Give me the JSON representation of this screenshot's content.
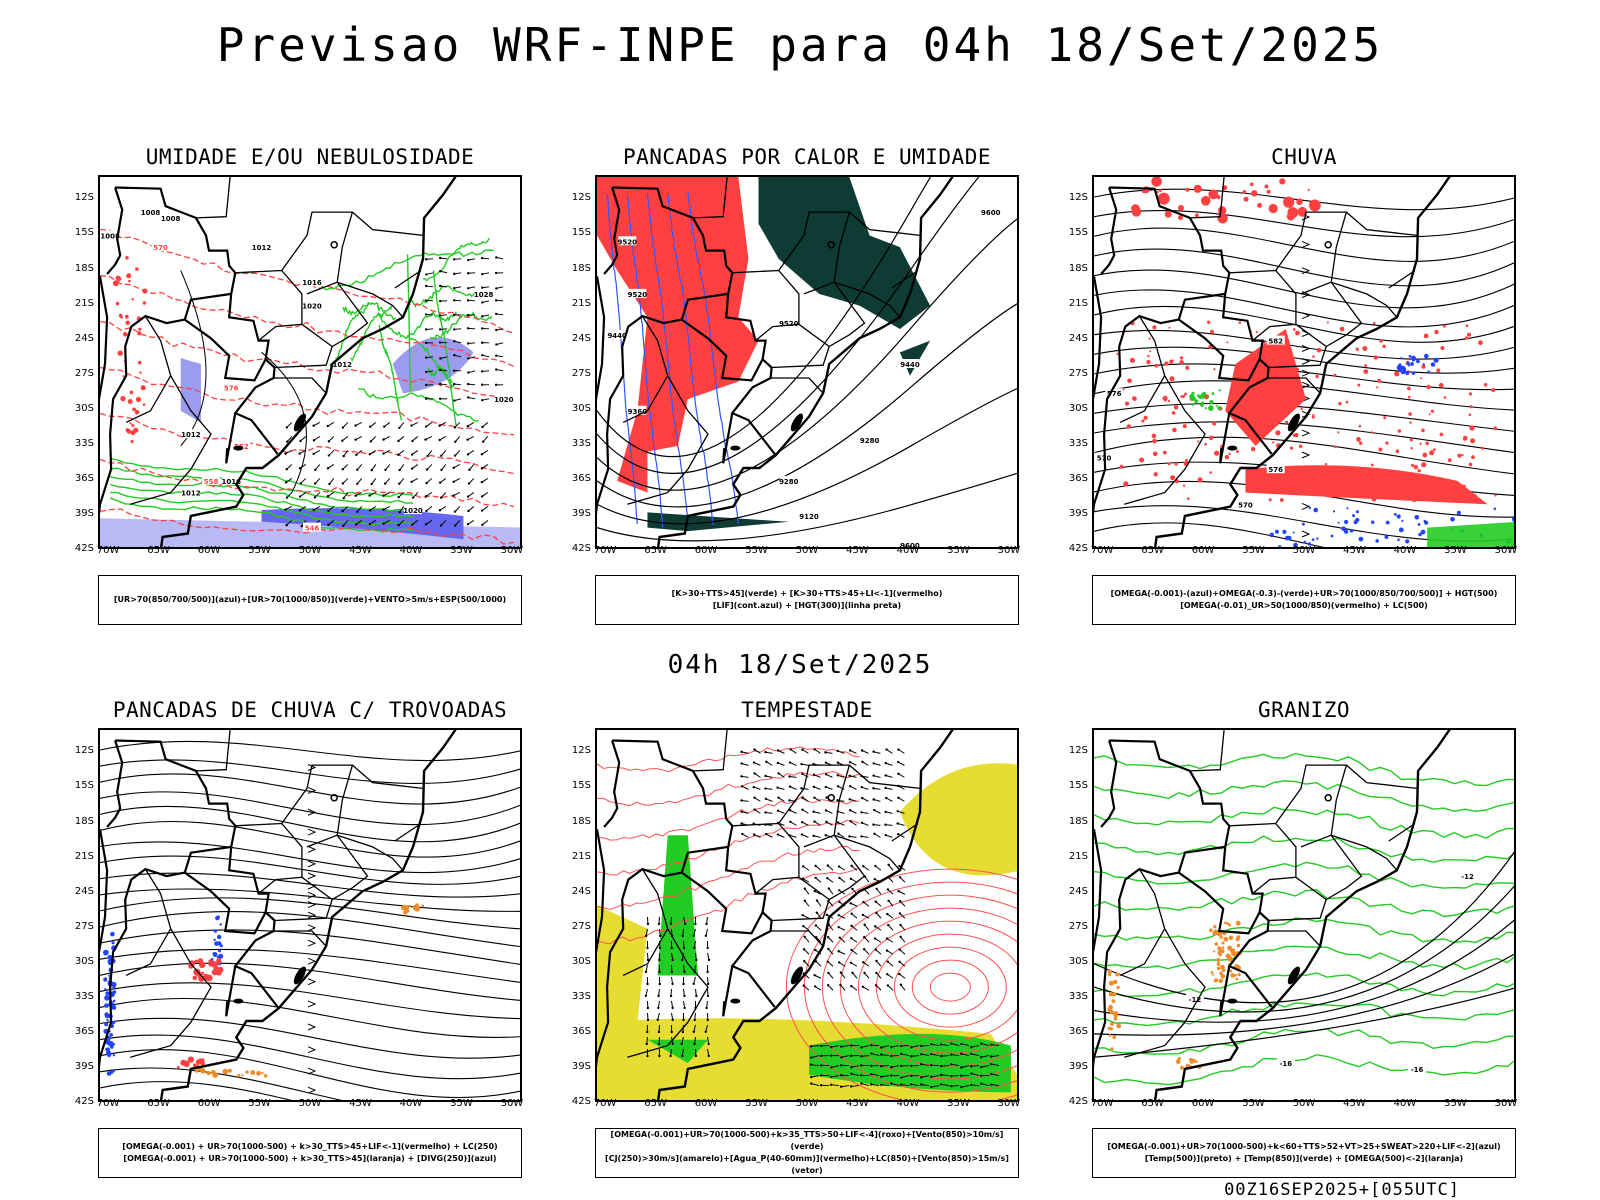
{
  "title": "Previsao WRF-INPE  para 04h 18/Set/2025",
  "subtitle_time": "04h 18/Set/2025",
  "footer": "00Z16SEP2025+[055UTC]",
  "lat_labels": [
    "12S",
    "15S",
    "18S",
    "21S",
    "24S",
    "27S",
    "30S",
    "33S",
    "36S",
    "39S",
    "42S"
  ],
  "lon_labels": [
    "70W",
    "65W",
    "60W",
    "55W",
    "50W",
    "45W",
    "40W",
    "35W",
    "30W"
  ],
  "colors": {
    "blue_shade": "#9b9bf0",
    "green": "#22cc22",
    "red": "#ff4040",
    "dark_teal": "#0f3b35",
    "yellow": "#e6dc32",
    "orange": "#f08c2a",
    "blue": "#2244ff"
  },
  "panels": [
    {
      "id": "umidade",
      "title": "UMIDADE E/OU NEBULOSIDADE",
      "legend": [
        "[UR>70(850/700/500)](azul)+[UR>70(1000/850)](verde)+VENTO>5m/s+ESP(500/1000)"
      ],
      "contour_labels": [
        "1008",
        "1008",
        "1008",
        "1012",
        "1016",
        "1020",
        "1028",
        "1012",
        "1012",
        "1016",
        "1012",
        "1020",
        "1020",
        "570",
        "576",
        "558",
        "552",
        "546"
      ]
    },
    {
      "id": "pancadas_calor",
      "title": "PANCADAS POR CALOR E UMIDADE",
      "legend": [
        "[K>30+TTS>45](verde) + [K>30+TTS>45+LI<-1](vermelho)",
        "[LIF](cont.azul) + [HGT(300)](linha preta)"
      ],
      "contour_labels": [
        "9600",
        "9520",
        "9520",
        "9520",
        "9440",
        "9440",
        "9360",
        "9280",
        "9280",
        "9120",
        "9600"
      ]
    },
    {
      "id": "chuva",
      "title": "CHUVA",
      "legend": [
        "[OMEGA(-0.001)-(azul)+OMEGA(-0.3)-(verde)+UR>70(1000/850/700/500)] + HGT(500)",
        "[OMEGA(-0.01)_UR>50(1000/850)(vermelho) + LC(500)"
      ],
      "contour_labels": [
        "582",
        "576",
        "570",
        "576",
        "570"
      ]
    },
    {
      "id": "pancadas_trovoadas",
      "title": "PANCADAS DE CHUVA C/ TROVOADAS",
      "legend": [
        "[OMEGA(-0.001) + UR>70(1000-500) + k>30_TTS>45+LIF<-1](vermelho) + LC(250)",
        "[OMEGA(-0.001) + UR>70(1000-500) + k>30_TTS>45](laranja) + [DIVG(250)](azul)"
      ],
      "contour_labels": []
    },
    {
      "id": "tempestade",
      "title": "TEMPESTADE",
      "legend": [
        "[OMEGA(-0.001)+UR>70(1000-500)+k>35_TTS>50+LIF<-4](roxo)+[Vento(850)>10m/s](verde)",
        "[CJ(250)>30m/s](amarelo)+[Agua_P(40-60mm)](vermelho)+LC(850)+[Vento(850)>15m/s](vetor)"
      ],
      "contour_labels": []
    },
    {
      "id": "granizo",
      "title": "GRANIZO",
      "legend": [
        "[OMEGA(-0.001)+UR>70(1000-500)+k<60+TTS>52+VT>25+SWEAT>220+LIF<-2](azul)",
        "[Temp(500)](preto) + [Temp(850)](verde) + [OMEGA(500)<-2](laranja)"
      ],
      "contour_labels": [
        "-12",
        "-12",
        "-16",
        "-16"
      ]
    }
  ]
}
